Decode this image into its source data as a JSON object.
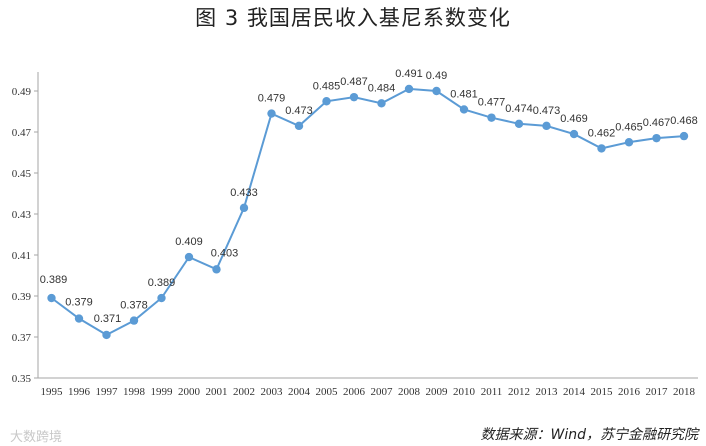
{
  "title": "图 3    我国居民收入基尼系数变化",
  "source": "数据来源：Wind，苏宁金融研究院",
  "watermark": "大数跨境",
  "colors": {
    "series": "#5b9bd5",
    "axis": "#a6a6a6"
  },
  "chart_data": {
    "type": "line",
    "x": [
      "1995",
      "1996",
      "1997",
      "1998",
      "1999",
      "2000",
      "2001",
      "2002",
      "2003",
      "2004",
      "2005",
      "2006",
      "2007",
      "2008",
      "2009",
      "2010",
      "2011",
      "2012",
      "2013",
      "2014",
      "2015",
      "2016",
      "2017",
      "2018"
    ],
    "values": [
      0.389,
      0.379,
      0.371,
      0.378,
      0.389,
      0.409,
      0.403,
      0.433,
      0.479,
      0.473,
      0.485,
      0.487,
      0.484,
      0.491,
      0.49,
      0.481,
      0.477,
      0.474,
      0.473,
      0.469,
      0.462,
      0.465,
      0.467,
      0.468
    ],
    "labels": [
      "0.389",
      "0.379",
      "0.371",
      "0.378",
      "0.389",
      "0.409",
      "0.403",
      "0.433",
      "0.479",
      "0.473",
      "0.485",
      "0.487",
      "0.484",
      "0.491",
      "0.49",
      "0.481",
      "0.477",
      "0.474",
      "0.473",
      "0.469",
      "0.462",
      "0.465",
      "0.467",
      "0.468"
    ],
    "yticks": [
      "0.35",
      "0.37",
      "0.39",
      "0.41",
      "0.43",
      "0.45",
      "0.47",
      "0.49"
    ],
    "ylim": [
      0.35,
      0.5
    ],
    "grid": false,
    "legend": "none"
  }
}
